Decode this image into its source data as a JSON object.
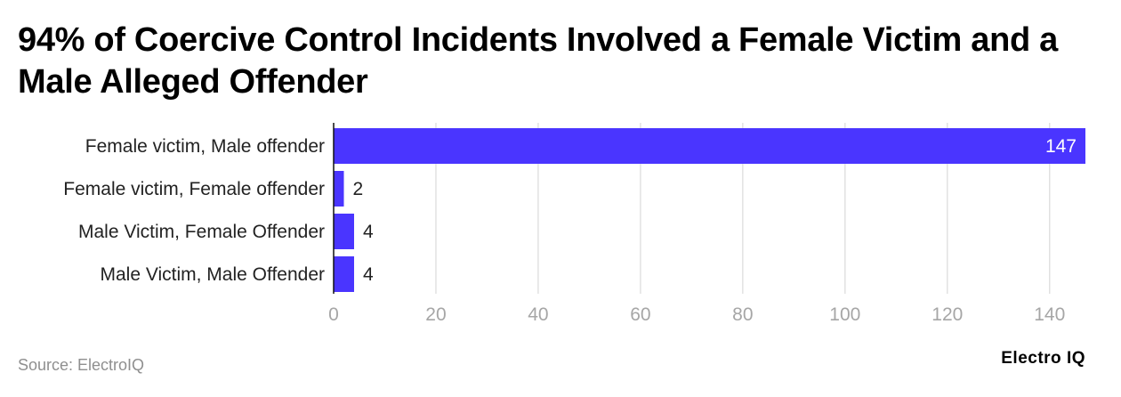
{
  "title": "94% of Coercive Control Incidents Involved a Female Victim and a Male Alleged Offender",
  "source": "Source: ElectroIQ",
  "brand": "Electro IQ",
  "colors": {
    "bar": "#4a35ff",
    "grid": "#dddddd",
    "tick_text": "#a6a6a6",
    "label_text": "#222222"
  },
  "chart_data": {
    "type": "bar",
    "orientation": "horizontal",
    "categories": [
      "Female victim, Male offender",
      "Female victim, Female offender",
      "Male Victim, Female Offender",
      "Male Victim, Male Offender"
    ],
    "values": [
      147,
      2,
      4,
      4
    ],
    "value_labels": [
      "147",
      "2",
      "4",
      "4"
    ],
    "xlim": [
      0,
      147
    ],
    "xticks": [
      0,
      20,
      40,
      60,
      80,
      100,
      120,
      140
    ],
    "grid": true,
    "legend": "none"
  }
}
